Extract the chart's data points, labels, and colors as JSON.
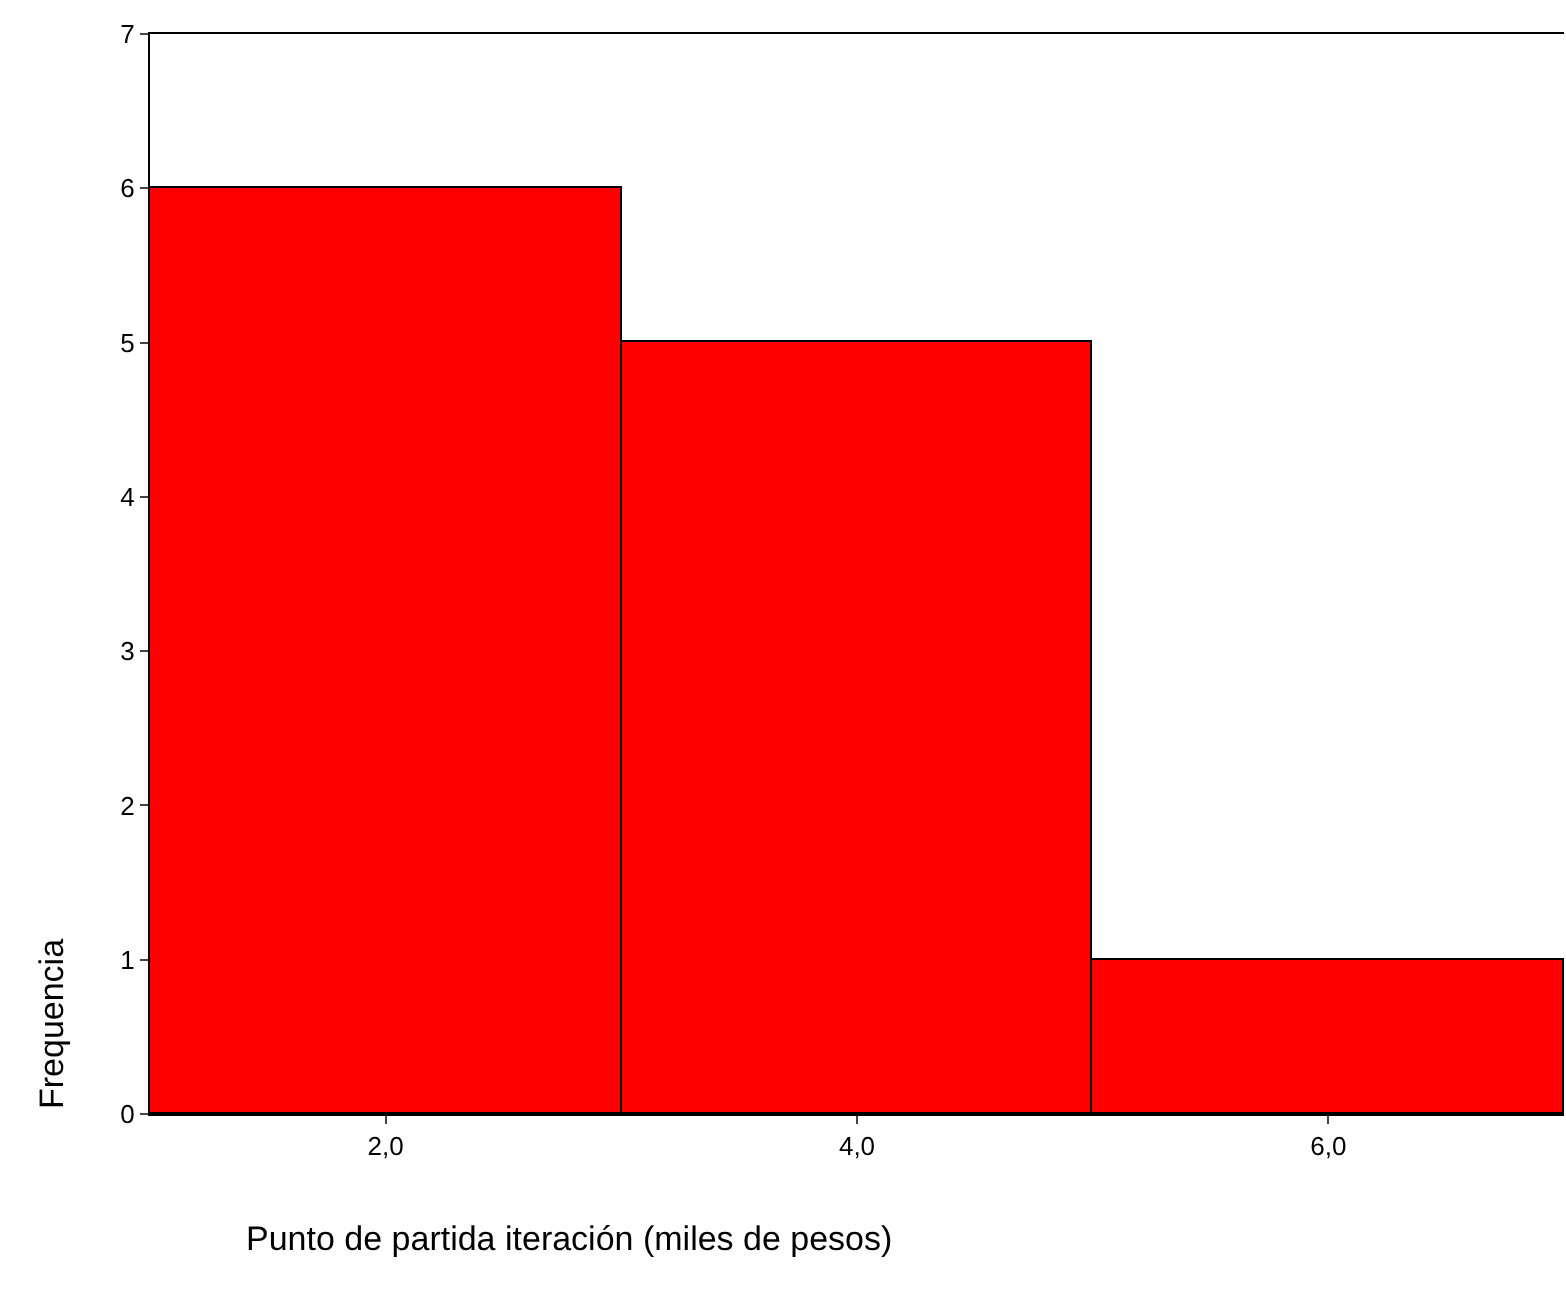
{
  "chart_data": {
    "type": "histogram",
    "bins": [
      1,
      3,
      5,
      7
    ],
    "values": [
      6,
      5,
      1
    ],
    "color": "#ff0000",
    "xlabel": "Punto de partida iteración (miles de pesos)",
    "ylabel": "Frequencia",
    "xlim": [
      1,
      7
    ],
    "xticks": [
      {
        "value": 2,
        "label": "2,0"
      },
      {
        "value": 4,
        "label": "4,0"
      },
      {
        "value": 6,
        "label": "6,0"
      }
    ],
    "ylim": [
      0,
      7
    ],
    "yticks": [
      0,
      1,
      2,
      3,
      4,
      5,
      6,
      7
    ]
  }
}
